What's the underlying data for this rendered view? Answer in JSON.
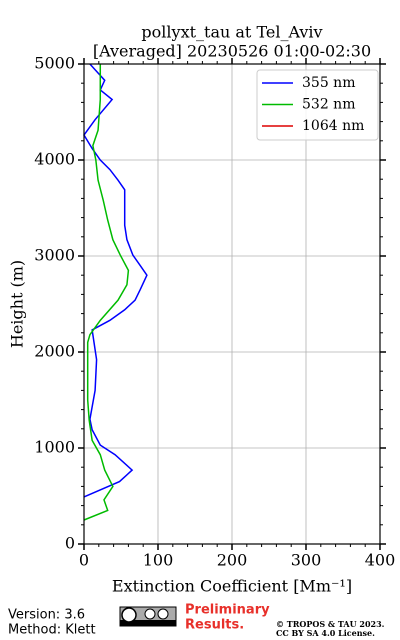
{
  "chart_data": {
    "type": "profile",
    "title": [
      "pollyxt_tau at Tel_Aviv",
      "[Averaged] 20230526 01:00-02:30"
    ],
    "xlabel": "Extinction Coefficient [Mm⁻¹]",
    "ylabel": "Height (m)",
    "xlim": [
      0,
      400
    ],
    "xticks": [
      0,
      100,
      200,
      300,
      400
    ],
    "ylim": [
      0,
      5000
    ],
    "yticks": [
      0,
      1000,
      2000,
      3000,
      4000,
      5000
    ],
    "grid": true,
    "legend": "upper right",
    "series": [
      {
        "name": "355 nm",
        "color": "#0000ff",
        "y": [
          490,
          650,
          770,
          930,
          1030,
          1190,
          1300,
          1600,
          1920,
          2230,
          2330,
          2440,
          2540,
          2650,
          2800,
          2900,
          3010,
          3170,
          3320,
          3480,
          3690,
          3790,
          3900,
          4000,
          4120,
          4260,
          4420,
          4630,
          4730,
          4830,
          4940,
          5000
        ],
        "values": [
          0,
          48,
          65,
          42,
          22,
          11,
          8,
          15,
          17,
          11,
          35,
          55,
          69,
          76,
          85,
          76,
          66,
          58,
          55,
          55,
          55,
          46,
          35,
          22,
          11,
          0,
          15,
          38,
          22,
          28,
          15,
          8
        ]
      },
      {
        "name": "532 nm",
        "color": "#00bb00",
        "y": [
          250,
          350,
          460,
          600,
          770,
          930,
          1080,
          1290,
          1500,
          1800,
          2100,
          2180,
          2330,
          2540,
          2700,
          2850,
          3010,
          3170,
          3375,
          3580,
          3790,
          4000,
          4150,
          4310,
          4630,
          5000
        ],
        "values": [
          0,
          32,
          27,
          39,
          28,
          22,
          11,
          7,
          5,
          5,
          5,
          8,
          22,
          46,
          58,
          60,
          49,
          39,
          32,
          26,
          19,
          16,
          12,
          19,
          22,
          22
        ]
      },
      {
        "name": "1064 nm",
        "color": "#dd0000",
        "y": [],
        "values": []
      }
    ]
  },
  "footer": {
    "version": "Version: 3.6",
    "method": "Method: Klett",
    "preliminary": [
      "Preliminary",
      "Results."
    ],
    "copyright": [
      "© TROPOS & TAU 2023.",
      "CC BY SA 4.0 License."
    ]
  }
}
